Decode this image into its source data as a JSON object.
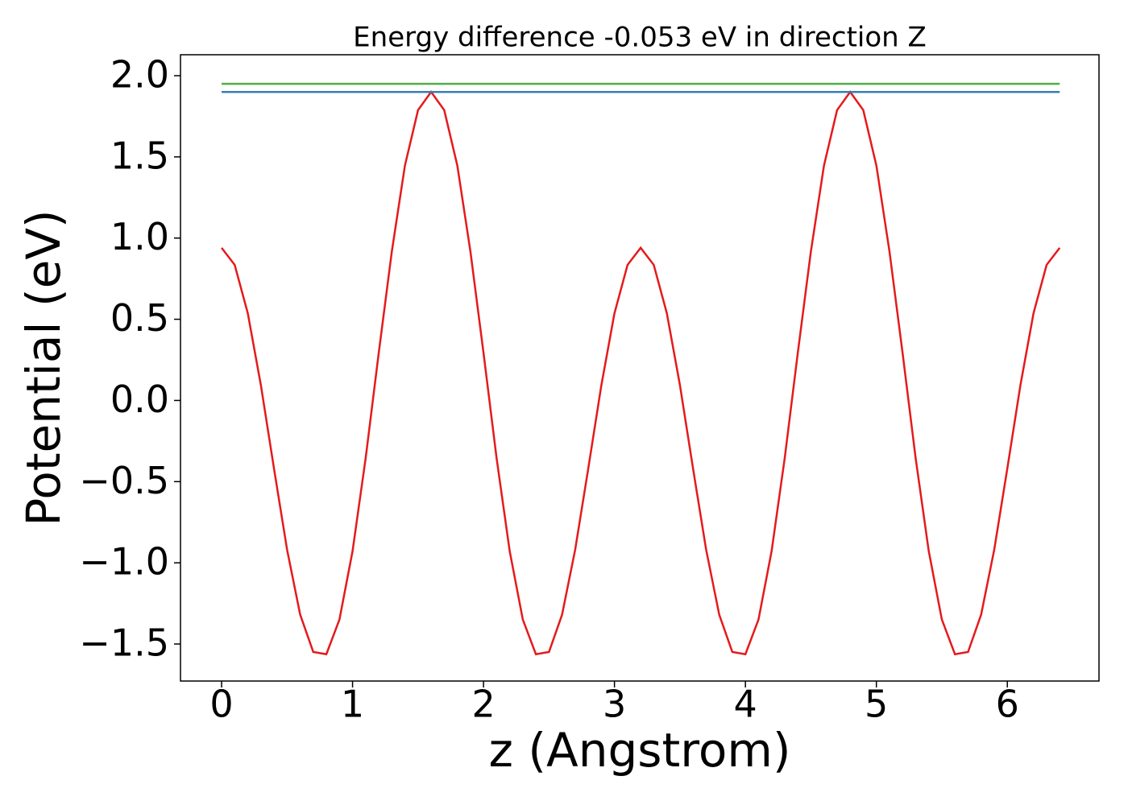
{
  "chart_data": {
    "type": "line",
    "title": "Energy difference -0.053 eV in direction Z",
    "xlabel": "z (Angstrom)",
    "ylabel": "Potential (eV)",
    "xlim": [
      -0.314,
      6.7
    ],
    "ylim": [
      -1.728,
      2.129
    ],
    "xticks": [
      0,
      1,
      2,
      3,
      4,
      5,
      6
    ],
    "yticks": [
      {
        "value": -1.5,
        "label": "−1.5"
      },
      {
        "value": -1.0,
        "label": "−1.0"
      },
      {
        "value": -0.5,
        "label": "−0.5"
      },
      {
        "value": 0.0,
        "label": "0.0"
      },
      0.5,
      {
        "value": 1.0,
        "label": "1.0"
      },
      1.5,
      {
        "value": 2.0,
        "label": "2.0"
      }
    ],
    "grid": false,
    "series": [
      {
        "color": "#e41a1c",
        "x": [
          0,
          0.1,
          0.2,
          0.3,
          0.4,
          0.5,
          0.6,
          0.7,
          0.8,
          0.9,
          1.0,
          1.1,
          1.2,
          1.3,
          1.4,
          1.5,
          1.6,
          1.7,
          1.8,
          1.9,
          2.0,
          2.1,
          2.2,
          2.3,
          2.4,
          2.5,
          2.6,
          2.7,
          2.8,
          2.9,
          3.0,
          3.1,
          3.2,
          3.3,
          3.4,
          3.5,
          3.6,
          3.7,
          3.8,
          3.9,
          4.0,
          4.1,
          4.2,
          4.3,
          4.4,
          4.5,
          4.6,
          4.7,
          4.8,
          4.9,
          5.0,
          5.1,
          5.2,
          5.3,
          5.4,
          5.5,
          5.6,
          5.7,
          5.8,
          5.9,
          6.0,
          6.1,
          6.2,
          6.3,
          6.4
        ],
        "values": [
          0.94,
          0.835,
          0.537,
          0.094,
          -0.419,
          -0.919,
          -1.319,
          -1.549,
          -1.563,
          -1.349,
          -0.928,
          -0.356,
          0.293,
          0.918,
          1.447,
          1.788,
          1.9,
          1.788,
          1.447,
          0.918,
          0.293,
          -0.356,
          -0.928,
          -1.349,
          -1.563,
          -1.549,
          -1.319,
          -0.919,
          -0.419,
          0.094,
          0.537,
          0.835,
          0.94,
          0.835,
          0.537,
          0.094,
          -0.419,
          -0.919,
          -1.319,
          -1.549,
          -1.563,
          -1.349,
          -0.928,
          -0.356,
          0.293,
          0.918,
          1.447,
          1.788,
          1.9,
          1.788,
          1.447,
          0.918,
          0.293,
          -0.356,
          -0.928,
          -1.349,
          -1.563,
          -1.549,
          -1.319,
          -0.919,
          -0.419,
          0.094,
          0.537,
          0.835,
          0.94
        ]
      },
      {
        "color": "#377eb8",
        "x": [
          0,
          6.4
        ],
        "values": [
          1.9,
          1.9
        ]
      },
      {
        "color": "#4daf4a",
        "x": [
          0,
          6.4
        ],
        "values": [
          1.95,
          1.95
        ]
      }
    ]
  }
}
